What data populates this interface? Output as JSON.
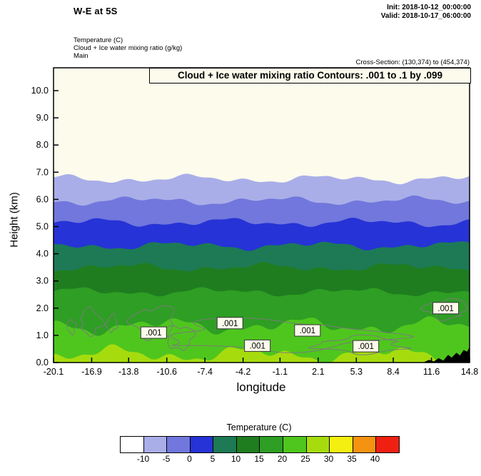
{
  "header": {
    "title": "W-E at 5S",
    "init_label": "Init: 2018-10-12_00:00:00",
    "valid_label": "Valid: 2018-10-17_06:00:00",
    "field_lines": [
      "Temperature (C)",
      "Cloud + Ice water mixing ratio (g/kg)",
      "Main"
    ],
    "cross_section": "Cross-Section: (130,374) to (454,374)"
  },
  "plot": {
    "contour_note": "Cloud + Ice water mixing ratio Contours: .001 to .1 by .099",
    "xlabel": "longitude",
    "ylabel": "Height (km)"
  },
  "chart_data": {
    "type": "area",
    "title": "Cloud + Ice water mixing ratio Contours: .001 to .1 by .099",
    "xlabel": "longitude",
    "ylabel": "Height (km)",
    "xlim": [
      -20.1,
      14.8
    ],
    "ylim": [
      0,
      10.84
    ],
    "x_ticks": [
      -20.1,
      -16.9,
      -13.8,
      -10.6,
      -7.4,
      -4.2,
      -1.1,
      2.1,
      5.3,
      8.4,
      11.6,
      14.8
    ],
    "y_ticks": [
      0,
      1,
      2,
      3,
      4,
      5,
      6,
      7,
      8,
      9,
      10
    ],
    "background_color": "#fcfbec",
    "temperature_bands": [
      {
        "upper_temp_c": -10,
        "boundary_mean_height_km": 6.75,
        "color": "#a9aee8"
      },
      {
        "upper_temp_c": -5,
        "boundary_mean_height_km": 5.95,
        "color": "#7177dc"
      },
      {
        "upper_temp_c": 0,
        "boundary_mean_height_km": 5.15,
        "color": "#2633d6"
      },
      {
        "upper_temp_c": 5,
        "boundary_mean_height_km": 4.3,
        "color": "#1d7a55"
      },
      {
        "upper_temp_c": 10,
        "boundary_mean_height_km": 3.5,
        "color": "#1f7d20"
      },
      {
        "upper_temp_c": 15,
        "boundary_mean_height_km": 2.6,
        "color": "#2e9e24"
      },
      {
        "upper_temp_c": 20,
        "boundary_mean_height_km": 1.35,
        "color": "#4fc61e"
      },
      {
        "upper_temp_c": 25,
        "boundary_mean_height_km": 0.3,
        "color": "#a6dc0e"
      }
    ],
    "cloud_contour_level": 0.001,
    "cloud_contour_regions": [
      [
        -18.6,
        1.3,
        0.35,
        0.25
      ],
      [
        -17.0,
        1.5,
        0.9,
        0.45
      ],
      [
        -15.2,
        1.45,
        0.45,
        0.3
      ],
      [
        -11.6,
        1.45,
        1.7,
        0.6
      ],
      [
        -9.6,
        0.9,
        1.1,
        0.45
      ],
      [
        -2.0,
        1.0,
        8.8,
        0.55
      ],
      [
        5.8,
        0.65,
        3.6,
        0.3
      ],
      [
        12.9,
        1.95,
        1.7,
        0.35
      ]
    ],
    "contour_labels": [
      {
        "lon": -11.7,
        "height_km": 1.1,
        "text": ".001"
      },
      {
        "lon": -5.3,
        "height_km": 1.45,
        "text": ".001"
      },
      {
        "lon": -3.0,
        "height_km": 0.62,
        "text": ".001"
      },
      {
        "lon": 1.2,
        "height_km": 1.18,
        "text": ".001"
      },
      {
        "lon": 6.1,
        "height_km": 0.6,
        "text": ".001"
      },
      {
        "lon": 12.8,
        "height_km": 2.0,
        "text": ".001"
      }
    ],
    "terrain_profile_km": [
      [
        10.9,
        0
      ],
      [
        11.4,
        0.1
      ],
      [
        11.8,
        0.04
      ],
      [
        12.2,
        0.16
      ],
      [
        12.6,
        0.07
      ],
      [
        13.0,
        0.28
      ],
      [
        13.3,
        0.18
      ],
      [
        13.7,
        0.36
      ],
      [
        14.0,
        0.26
      ],
      [
        14.3,
        0.46
      ],
      [
        14.6,
        0.4
      ],
      [
        14.8,
        0.58
      ]
    ],
    "colorbar": {
      "title": "Temperature (C)",
      "colors": [
        "#ffffff",
        "#a9aee8",
        "#7177dc",
        "#2633d6",
        "#1d7a55",
        "#1f7d20",
        "#2e9e24",
        "#4fc61e",
        "#a6dc0e",
        "#f5ef11",
        "#f59211",
        "#ef2011"
      ],
      "tick_labels": [
        "-10",
        "-5",
        "0",
        "5",
        "10",
        "15",
        "20",
        "25",
        "30",
        "35",
        "40"
      ]
    }
  }
}
